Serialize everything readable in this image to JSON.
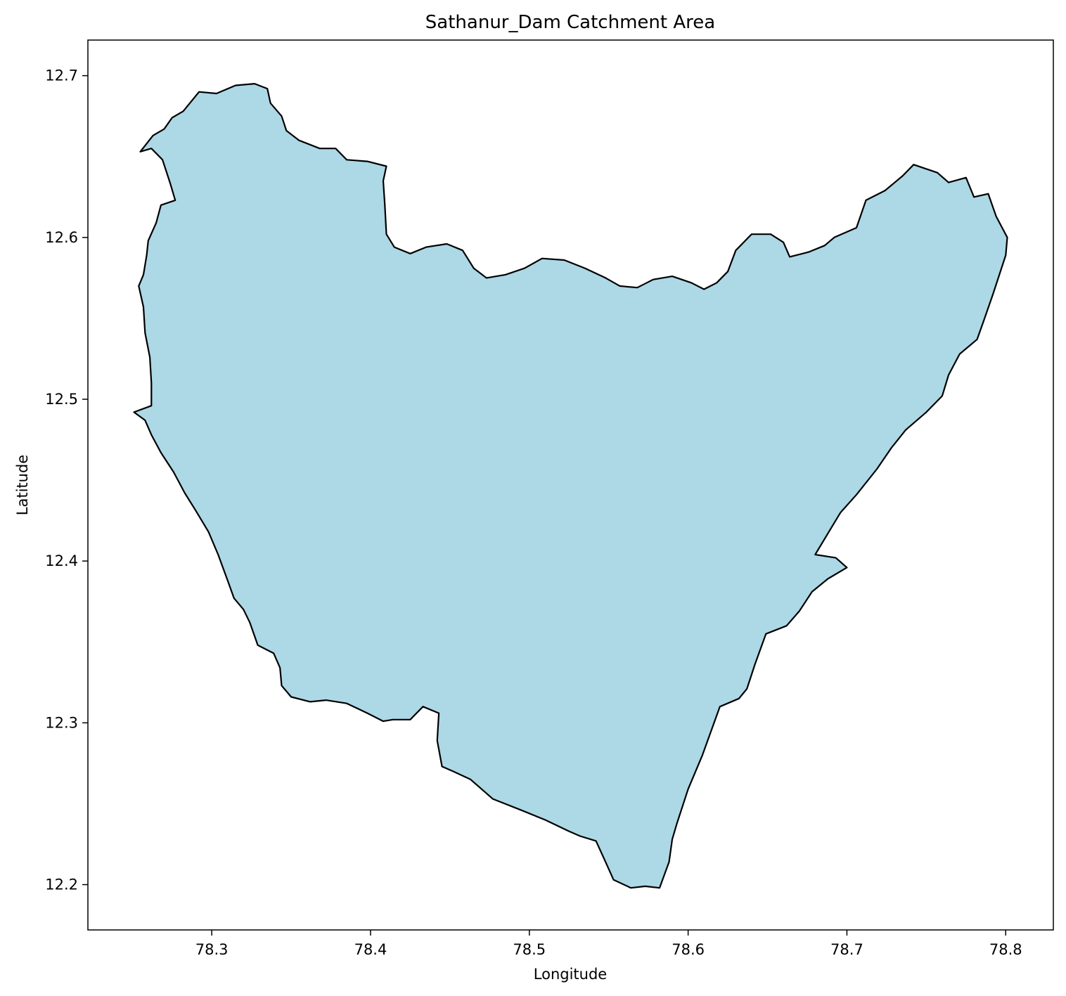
{
  "chart_data": {
    "type": "map",
    "title": "Sathanur_Dam Catchment Area",
    "xlabel": "Longitude",
    "ylabel": "Latitude",
    "xlim": [
      78.222,
      78.83
    ],
    "ylim": [
      12.172,
      12.722
    ],
    "xticks": [
      78.3,
      78.4,
      78.5,
      78.6,
      78.7,
      78.8
    ],
    "yticks": [
      12.2,
      12.3,
      12.4,
      12.5,
      12.6,
      12.7
    ],
    "fill_color": "#add8e6",
    "edge_color": "#000000",
    "polygon": [
      [
        78.251,
        12.492
      ],
      [
        78.258,
        12.487
      ],
      [
        78.262,
        12.478
      ],
      [
        78.268,
        12.467
      ],
      [
        78.276,
        12.455
      ],
      [
        78.283,
        12.442
      ],
      [
        78.29,
        12.431
      ],
      [
        78.298,
        12.418
      ],
      [
        78.304,
        12.404
      ],
      [
        78.31,
        12.388
      ],
      [
        78.314,
        12.377
      ],
      [
        78.32,
        12.37
      ],
      [
        78.324,
        12.362
      ],
      [
        78.329,
        12.348
      ],
      [
        78.339,
        12.343
      ],
      [
        78.343,
        12.334
      ],
      [
        78.344,
        12.323
      ],
      [
        78.35,
        12.316
      ],
      [
        78.362,
        12.313
      ],
      [
        78.372,
        12.314
      ],
      [
        78.385,
        12.312
      ],
      [
        78.398,
        12.306
      ],
      [
        78.408,
        12.301
      ],
      [
        78.414,
        12.302
      ],
      [
        78.425,
        12.302
      ],
      [
        78.433,
        12.31
      ],
      [
        78.443,
        12.306
      ],
      [
        78.442,
        12.289
      ],
      [
        78.445,
        12.273
      ],
      [
        78.452,
        12.27
      ],
      [
        78.463,
        12.265
      ],
      [
        78.477,
        12.253
      ],
      [
        78.495,
        12.246
      ],
      [
        78.51,
        12.24
      ],
      [
        78.525,
        12.233
      ],
      [
        78.532,
        12.23
      ],
      [
        78.542,
        12.227
      ],
      [
        78.548,
        12.214
      ],
      [
        78.553,
        12.203
      ],
      [
        78.564,
        12.198
      ],
      [
        78.573,
        12.199
      ],
      [
        78.582,
        12.198
      ],
      [
        78.588,
        12.214
      ],
      [
        78.59,
        12.228
      ],
      [
        78.593,
        12.238
      ],
      [
        78.6,
        12.259
      ],
      [
        78.609,
        12.28
      ],
      [
        78.62,
        12.31
      ],
      [
        78.632,
        12.315
      ],
      [
        78.637,
        12.321
      ],
      [
        78.642,
        12.336
      ],
      [
        78.649,
        12.355
      ],
      [
        78.662,
        12.36
      ],
      [
        78.67,
        12.369
      ],
      [
        78.678,
        12.381
      ],
      [
        78.688,
        12.389
      ],
      [
        78.7,
        12.396
      ],
      [
        78.693,
        12.402
      ],
      [
        78.68,
        12.404
      ],
      [
        78.688,
        12.417
      ],
      [
        78.696,
        12.43
      ],
      [
        78.706,
        12.441
      ],
      [
        78.719,
        12.457
      ],
      [
        78.728,
        12.47
      ],
      [
        78.737,
        12.481
      ],
      [
        78.75,
        12.492
      ],
      [
        78.76,
        12.502
      ],
      [
        78.764,
        12.515
      ],
      [
        78.771,
        12.528
      ],
      [
        78.782,
        12.537
      ],
      [
        78.786,
        12.548
      ],
      [
        78.792,
        12.565
      ],
      [
        78.797,
        12.58
      ],
      [
        78.8,
        12.589
      ],
      [
        78.801,
        12.6
      ],
      [
        78.794,
        12.613
      ],
      [
        78.789,
        12.627
      ],
      [
        78.78,
        12.625
      ],
      [
        78.775,
        12.637
      ],
      [
        78.764,
        12.634
      ],
      [
        78.757,
        12.64
      ],
      [
        78.742,
        12.645
      ],
      [
        78.735,
        12.638
      ],
      [
        78.724,
        12.629
      ],
      [
        78.712,
        12.623
      ],
      [
        78.706,
        12.606
      ],
      [
        78.692,
        12.6
      ],
      [
        78.686,
        12.595
      ],
      [
        78.676,
        12.591
      ],
      [
        78.664,
        12.588
      ],
      [
        78.66,
        12.597
      ],
      [
        78.652,
        12.602
      ],
      [
        78.64,
        12.602
      ],
      [
        78.63,
        12.592
      ],
      [
        78.625,
        12.579
      ],
      [
        78.618,
        12.572
      ],
      [
        78.61,
        12.568
      ],
      [
        78.602,
        12.572
      ],
      [
        78.59,
        12.576
      ],
      [
        78.578,
        12.574
      ],
      [
        78.568,
        12.569
      ],
      [
        78.557,
        12.57
      ],
      [
        78.548,
        12.575
      ],
      [
        78.535,
        12.581
      ],
      [
        78.522,
        12.586
      ],
      [
        78.508,
        12.587
      ],
      [
        78.497,
        12.581
      ],
      [
        78.485,
        12.577
      ],
      [
        78.473,
        12.575
      ],
      [
        78.465,
        12.581
      ],
      [
        78.458,
        12.592
      ],
      [
        78.448,
        12.596
      ],
      [
        78.435,
        12.594
      ],
      [
        78.425,
        12.59
      ],
      [
        78.415,
        12.594
      ],
      [
        78.41,
        12.602
      ],
      [
        78.409,
        12.62
      ],
      [
        78.408,
        12.635
      ],
      [
        78.41,
        12.644
      ],
      [
        78.398,
        12.647
      ],
      [
        78.385,
        12.648
      ],
      [
        78.378,
        12.655
      ],
      [
        78.368,
        12.655
      ],
      [
        78.355,
        12.66
      ],
      [
        78.347,
        12.666
      ],
      [
        78.344,
        12.675
      ],
      [
        78.337,
        12.683
      ],
      [
        78.335,
        12.692
      ],
      [
        78.327,
        12.695
      ],
      [
        78.315,
        12.694
      ],
      [
        78.303,
        12.689
      ],
      [
        78.292,
        12.69
      ],
      [
        78.282,
        12.678
      ],
      [
        78.275,
        12.674
      ],
      [
        78.27,
        12.667
      ],
      [
        78.263,
        12.663
      ],
      [
        78.255,
        12.653
      ],
      [
        78.262,
        12.655
      ],
      [
        78.269,
        12.648
      ],
      [
        78.274,
        12.633
      ],
      [
        78.277,
        12.623
      ],
      [
        78.268,
        12.62
      ],
      [
        78.265,
        12.609
      ],
      [
        78.26,
        12.598
      ],
      [
        78.259,
        12.589
      ],
      [
        78.257,
        12.577
      ],
      [
        78.254,
        12.57
      ],
      [
        78.257,
        12.557
      ],
      [
        78.258,
        12.541
      ],
      [
        78.261,
        12.526
      ],
      [
        78.262,
        12.51
      ],
      [
        78.262,
        12.496
      ],
      [
        78.251,
        12.492
      ]
    ]
  }
}
